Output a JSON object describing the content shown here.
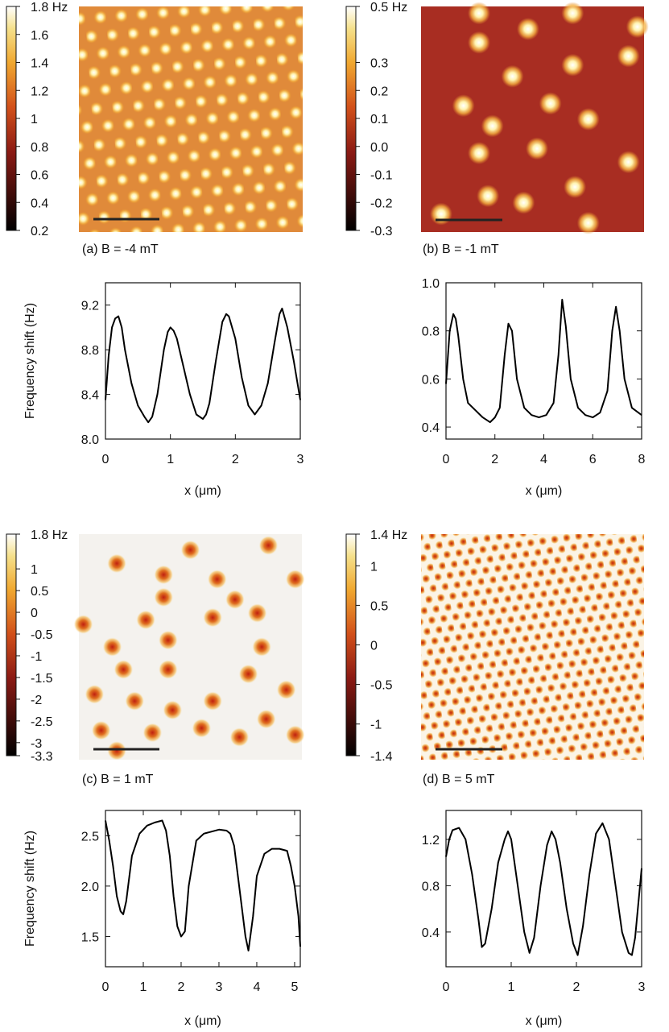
{
  "figure": {
    "panels": [
      {
        "id": "a",
        "caption": "(a) B = -4 mT",
        "colorbar_labels": [
          "1.8 Hz",
          "1.6",
          "1.4",
          "1.2",
          "1",
          "0.8",
          "0.6",
          "0.4",
          "0.2"
        ],
        "colorbar_values": [
          1.8,
          1.6,
          1.4,
          1.2,
          1.0,
          0.8,
          0.6,
          0.4,
          0.2
        ],
        "image_contrast": "bright spots on darker background",
        "spot_lattice": "dense hexagonal"
      },
      {
        "id": "b",
        "caption": "(b) B = -1 mT",
        "colorbar_labels": [
          "0.5 Hz",
          "0.3",
          "0.2",
          "0.1",
          "0.0",
          "-0.1",
          "-0.2",
          "-0.3"
        ],
        "colorbar_values": [
          0.5,
          0.3,
          0.2,
          0.1,
          0.0,
          -0.1,
          -0.2,
          -0.3
        ],
        "image_contrast": "bright spots on dark red background",
        "spot_lattice": "sparse"
      },
      {
        "id": "c",
        "caption": "(c) B = 1 mT",
        "colorbar_labels": [
          "1.8 Hz",
          "1",
          "0.5",
          "0",
          "-0.5",
          "-1",
          "-1.5",
          "-2",
          "-2.5",
          "-3",
          "-3.3"
        ],
        "colorbar_values": [
          1.8,
          1.0,
          0.5,
          0.0,
          -0.5,
          -1.0,
          -1.5,
          -2.0,
          -2.5,
          -3.0,
          -3.3
        ],
        "image_contrast": "dark spots on bright background",
        "spot_lattice": "sparse"
      },
      {
        "id": "d",
        "caption": "(d) B = 5 mT",
        "colorbar_labels": [
          "1.4 Hz",
          "1",
          "0.5",
          "0",
          "-0.5",
          "-1",
          "-1.4"
        ],
        "colorbar_values": [
          1.4,
          1.0,
          0.5,
          0.0,
          -0.5,
          -1.0,
          -1.4
        ],
        "image_contrast": "dark spots on bright background",
        "spot_lattice": "very dense hexagonal"
      }
    ]
  },
  "chart_data": [
    {
      "panel": "a",
      "type": "line",
      "xlabel": "x (μm)",
      "ylabel": "Frequency shift (Hz)",
      "xlim": [
        0,
        3
      ],
      "ylim": [
        8.0,
        9.4
      ],
      "xticks": [
        0,
        1,
        2,
        3
      ],
      "xtick_labels": [
        "0",
        "1",
        "2",
        "3"
      ],
      "yticks": [
        8.0,
        8.4,
        8.8,
        9.2
      ],
      "ytick_labels": [
        "8.0",
        "8.4",
        "8.8",
        "9.2"
      ],
      "x": [
        0.0,
        0.05,
        0.1,
        0.15,
        0.2,
        0.25,
        0.3,
        0.4,
        0.5,
        0.6,
        0.66,
        0.72,
        0.8,
        0.9,
        0.96,
        1.0,
        1.05,
        1.1,
        1.2,
        1.3,
        1.4,
        1.5,
        1.55,
        1.6,
        1.7,
        1.8,
        1.86,
        1.9,
        2.0,
        2.1,
        2.2,
        2.3,
        2.4,
        2.5,
        2.6,
        2.68,
        2.72,
        2.8,
        2.9,
        3.0
      ],
      "y": [
        8.35,
        8.75,
        9.0,
        9.08,
        9.1,
        9.0,
        8.8,
        8.5,
        8.3,
        8.2,
        8.15,
        8.2,
        8.4,
        8.8,
        8.96,
        9.0,
        8.97,
        8.9,
        8.65,
        8.4,
        8.22,
        8.18,
        8.22,
        8.32,
        8.7,
        9.05,
        9.12,
        9.1,
        8.9,
        8.55,
        8.3,
        8.22,
        8.3,
        8.5,
        8.85,
        9.12,
        9.17,
        9.0,
        8.7,
        8.35
      ]
    },
    {
      "panel": "b",
      "type": "line",
      "xlabel": "x (μm)",
      "ylabel": "",
      "xlim": [
        0,
        8
      ],
      "ylim": [
        0.35,
        1.0
      ],
      "xticks": [
        0,
        2,
        4,
        6,
        8
      ],
      "xtick_labels": [
        "0",
        "2",
        "4",
        "6",
        "8"
      ],
      "yticks": [
        0.4,
        0.6,
        0.8,
        1.0
      ],
      "ytick_labels": [
        "0.4",
        "0.6",
        "0.8",
        "1.0"
      ],
      "x": [
        0.0,
        0.15,
        0.3,
        0.4,
        0.5,
        0.7,
        0.9,
        1.2,
        1.5,
        1.8,
        2.0,
        2.2,
        2.4,
        2.55,
        2.7,
        2.9,
        3.2,
        3.5,
        3.8,
        4.1,
        4.4,
        4.6,
        4.75,
        4.9,
        5.1,
        5.4,
        5.7,
        6.0,
        6.3,
        6.6,
        6.8,
        6.95,
        7.1,
        7.3,
        7.6,
        8.0
      ],
      "y": [
        0.58,
        0.8,
        0.87,
        0.85,
        0.78,
        0.6,
        0.5,
        0.47,
        0.44,
        0.42,
        0.44,
        0.48,
        0.7,
        0.83,
        0.8,
        0.6,
        0.48,
        0.45,
        0.44,
        0.45,
        0.5,
        0.7,
        0.93,
        0.82,
        0.6,
        0.48,
        0.45,
        0.44,
        0.46,
        0.55,
        0.8,
        0.9,
        0.8,
        0.6,
        0.48,
        0.45
      ]
    },
    {
      "panel": "c",
      "type": "line",
      "xlabel": "x (μm)",
      "ylabel": "Frequency shift (Hz)",
      "xlim": [
        0,
        5.15
      ],
      "ylim": [
        1.2,
        2.75
      ],
      "xticks": [
        0,
        1,
        2,
        3,
        4,
        5
      ],
      "xtick_labels": [
        "0",
        "1",
        "2",
        "3",
        "4",
        "5"
      ],
      "yticks": [
        1.5,
        2.0,
        2.5
      ],
      "ytick_labels": [
        "1.5",
        "2.0",
        "2.5"
      ],
      "x": [
        0.0,
        0.1,
        0.2,
        0.3,
        0.4,
        0.47,
        0.55,
        0.7,
        0.9,
        1.1,
        1.3,
        1.5,
        1.6,
        1.7,
        1.8,
        1.9,
        2.0,
        2.1,
        2.2,
        2.4,
        2.6,
        2.8,
        3.0,
        3.2,
        3.3,
        3.4,
        3.5,
        3.6,
        3.7,
        3.78,
        3.9,
        4.0,
        4.2,
        4.4,
        4.6,
        4.8,
        4.9,
        5.0,
        5.1,
        5.15
      ],
      "y": [
        2.65,
        2.45,
        2.2,
        1.9,
        1.75,
        1.72,
        1.85,
        2.3,
        2.52,
        2.6,
        2.63,
        2.65,
        2.55,
        2.3,
        1.9,
        1.6,
        1.5,
        1.55,
        2.0,
        2.45,
        2.52,
        2.54,
        2.56,
        2.55,
        2.52,
        2.4,
        2.1,
        1.8,
        1.5,
        1.36,
        1.7,
        2.1,
        2.32,
        2.37,
        2.37,
        2.35,
        2.2,
        2.0,
        1.7,
        1.4
      ]
    },
    {
      "panel": "d",
      "type": "line",
      "xlabel": "x (μm)",
      "ylabel": "",
      "xlim": [
        0,
        3
      ],
      "ylim": [
        0.1,
        1.45
      ],
      "xticks": [
        0,
        1,
        2,
        3
      ],
      "xtick_labels": [
        "0",
        "1",
        "2",
        "3"
      ],
      "yticks": [
        0.4,
        0.8,
        1.2
      ],
      "ytick_labels": [
        "0.4",
        "0.8",
        "1.2"
      ],
      "x": [
        0.0,
        0.05,
        0.1,
        0.2,
        0.3,
        0.4,
        0.5,
        0.55,
        0.6,
        0.7,
        0.8,
        0.9,
        0.95,
        1.0,
        1.1,
        1.2,
        1.28,
        1.35,
        1.45,
        1.55,
        1.62,
        1.68,
        1.75,
        1.85,
        1.95,
        2.02,
        2.1,
        2.2,
        2.3,
        2.4,
        2.5,
        2.6,
        2.7,
        2.8,
        2.85,
        2.9,
        3.0
      ],
      "y": [
        1.05,
        1.2,
        1.28,
        1.3,
        1.2,
        0.9,
        0.5,
        0.27,
        0.3,
        0.6,
        1.0,
        1.2,
        1.27,
        1.2,
        0.8,
        0.4,
        0.22,
        0.35,
        0.8,
        1.15,
        1.27,
        1.2,
        1.0,
        0.6,
        0.3,
        0.2,
        0.45,
        0.9,
        1.25,
        1.34,
        1.2,
        0.8,
        0.4,
        0.22,
        0.2,
        0.35,
        0.95
      ]
    }
  ]
}
